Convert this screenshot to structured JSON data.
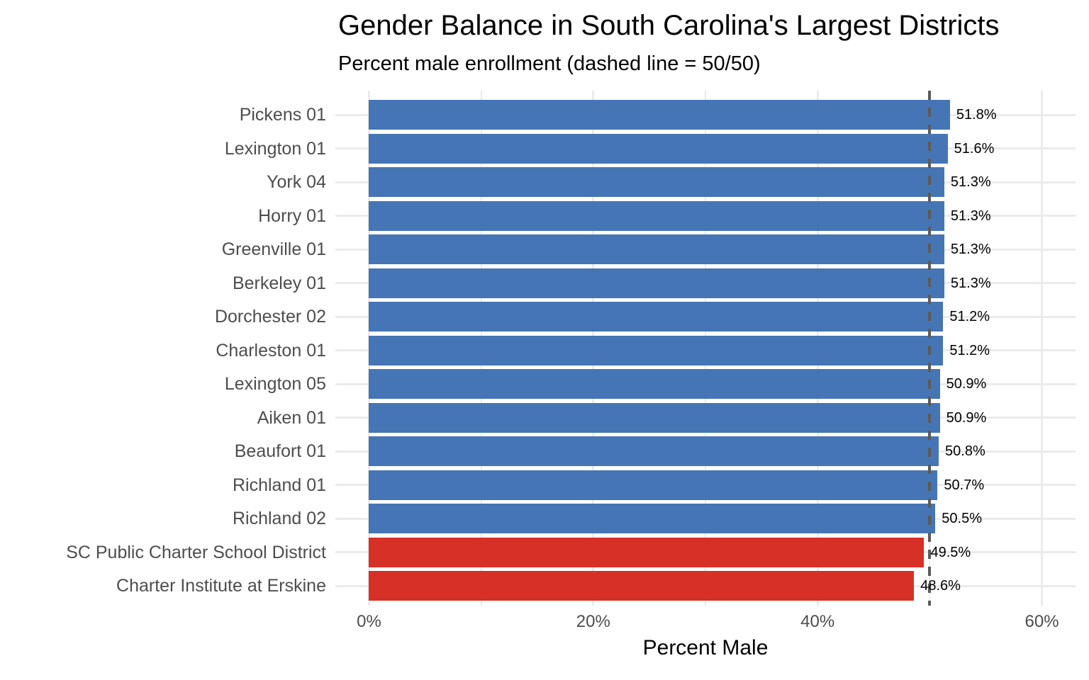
{
  "title": "Gender Balance in South Carolina's Largest Districts",
  "subtitle": "Percent male enrollment (dashed line = 50/50)",
  "x_axis_title": "Percent Male",
  "chart_data": {
    "type": "bar",
    "orientation": "horizontal",
    "title": "Gender Balance in South Carolina's Largest Districts",
    "subtitle": "Percent male enrollment (dashed line = 50/50)",
    "xlabel": "Percent Male",
    "ylabel": "",
    "xlim": [
      -3,
      63
    ],
    "x_tick_values": [
      0,
      20,
      40,
      60
    ],
    "x_tick_labels": [
      "0%",
      "20%",
      "40%",
      "60%"
    ],
    "x_minor_gridlines": [
      10,
      30,
      50
    ],
    "grid": "on",
    "legend": "none",
    "reference_line": {
      "value": 50,
      "style": "dashed",
      "color": "#5b5b5b",
      "meaning": "50/50 gender balance"
    },
    "categories": [
      "Pickens 01",
      "Lexington 01",
      "York 04",
      "Horry 01",
      "Greenville 01",
      "Berkeley 01",
      "Dorchester 02",
      "Charleston 01",
      "Lexington 05",
      "Aiken 01",
      "Beaufort 01",
      "Richland 01",
      "Richland 02",
      "SC Public Charter School District",
      "Charter Institute at Erskine"
    ],
    "values": [
      51.8,
      51.6,
      51.3,
      51.3,
      51.3,
      51.3,
      51.2,
      51.2,
      50.9,
      50.9,
      50.8,
      50.7,
      50.5,
      49.5,
      48.6
    ],
    "value_labels": [
      "51.8%",
      "51.6%",
      "51.3%",
      "51.3%",
      "51.3%",
      "51.3%",
      "51.2%",
      "51.2%",
      "50.9%",
      "50.9%",
      "50.8%",
      "50.7%",
      "50.5%",
      "49.5%",
      "48.6%"
    ],
    "colors": {
      "above_50": "#4575B4",
      "below_50": "#D73027",
      "threshold": 50,
      "gridline": "#ebebeb",
      "axis_text": "#4d4d4d",
      "value_text": "#000000"
    }
  }
}
